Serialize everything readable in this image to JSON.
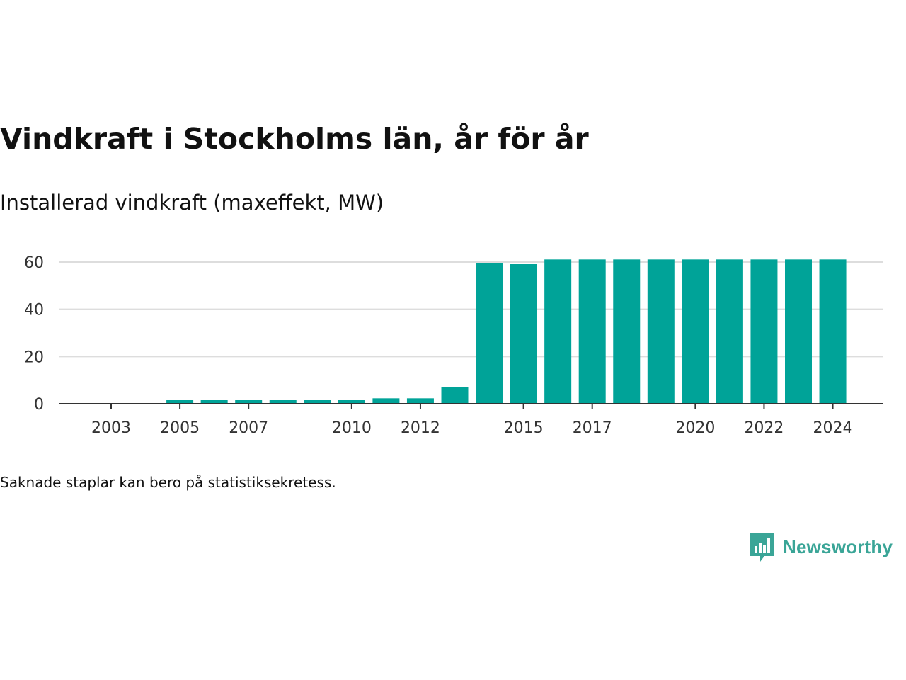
{
  "header": {
    "title": "Vindkraft i Stockholms län, år för år",
    "subtitle": "Installerad vindkraft (maxeffekt, MW)"
  },
  "footer": {
    "note": "Saknade staplar kan bero på statistiksekretess.",
    "brand": "Newsworthy"
  },
  "colors": {
    "bar": "#00a398",
    "grid": "#dddddd",
    "axis": "#333333",
    "brand": "#3aa597"
  },
  "chart_data": {
    "type": "bar",
    "title": "Vindkraft i Stockholms län, år för år",
    "subtitle": "Installerad vindkraft (maxeffekt, MW)",
    "xlabel": "",
    "ylabel": "",
    "categories": [
      "2003",
      "2004",
      "2005",
      "2006",
      "2007",
      "2008",
      "2009",
      "2010",
      "2011",
      "2012",
      "2013",
      "2014",
      "2015",
      "2016",
      "2017",
      "2018",
      "2019",
      "2020",
      "2021",
      "2022",
      "2023",
      "2024"
    ],
    "values": [
      0,
      0,
      1.5,
      1.5,
      1.5,
      1.5,
      1.5,
      1.5,
      2.3,
      2.3,
      7.2,
      59.5,
      59.1,
      61.1,
      61.1,
      61.1,
      61.1,
      61.1,
      61.1,
      61.1,
      61.1,
      61.1
    ],
    "ylim": [
      0,
      60
    ],
    "yticks": [
      0,
      20,
      40,
      60
    ],
    "xtick_labels": [
      "2003",
      "2005",
      "2007",
      "2010",
      "2012",
      "2015",
      "2017",
      "2020",
      "2022",
      "2024"
    ],
    "grid": true,
    "legend": "none"
  }
}
